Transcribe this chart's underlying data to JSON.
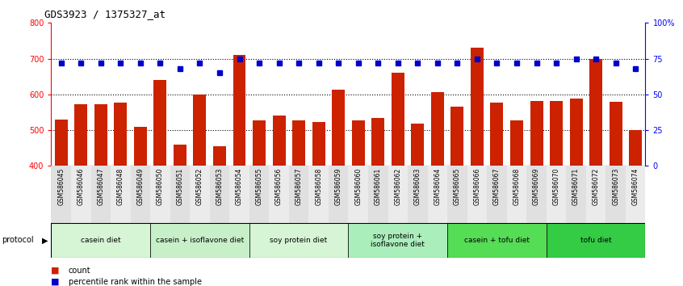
{
  "title": "GDS3923 / 1375327_at",
  "samples": [
    "GSM586045",
    "GSM586046",
    "GSM586047",
    "GSM586048",
    "GSM586049",
    "GSM586050",
    "GSM586051",
    "GSM586052",
    "GSM586053",
    "GSM586054",
    "GSM586055",
    "GSM586056",
    "GSM586057",
    "GSM586058",
    "GSM586059",
    "GSM586060",
    "GSM586061",
    "GSM586062",
    "GSM586063",
    "GSM586064",
    "GSM586065",
    "GSM586066",
    "GSM586067",
    "GSM586068",
    "GSM586069",
    "GSM586070",
    "GSM586071",
    "GSM586072",
    "GSM586073",
    "GSM586074"
  ],
  "counts": [
    530,
    572,
    572,
    578,
    510,
    640,
    460,
    600,
    455,
    710,
    528,
    540,
    527,
    523,
    613,
    527,
    535,
    660,
    518,
    607,
    565,
    730,
    577,
    527,
    582,
    582,
    588,
    700,
    580,
    500
  ],
  "percentile_ranks": [
    72,
    72,
    72,
    72,
    72,
    72,
    68,
    72,
    65,
    75,
    72,
    72,
    72,
    72,
    72,
    72,
    72,
    72,
    72,
    72,
    72,
    75,
    72,
    72,
    72,
    72,
    75,
    75,
    72,
    68
  ],
  "proto_data": [
    {
      "label": "casein diet",
      "start": 0,
      "end": 5,
      "color": "#d5f5d5"
    },
    {
      "label": "casein + isoflavone diet",
      "start": 5,
      "end": 10,
      "color": "#c8f0c8"
    },
    {
      "label": "soy protein diet",
      "start": 10,
      "end": 15,
      "color": "#d5f5d5"
    },
    {
      "label": "soy protein +\nisoflavone diet",
      "start": 15,
      "end": 20,
      "color": "#aaeebb"
    },
    {
      "label": "casein + tofu diet",
      "start": 20,
      "end": 25,
      "color": "#55dd55"
    },
    {
      "label": "tofu diet",
      "start": 25,
      "end": 30,
      "color": "#33cc44"
    }
  ],
  "ylim_left": [
    400,
    800
  ],
  "ylim_right": [
    0,
    100
  ],
  "yticks_left": [
    400,
    500,
    600,
    700,
    800
  ],
  "yticks_right": [
    0,
    25,
    50,
    75,
    100
  ],
  "bar_color": "#cc2200",
  "dot_color": "#0000cc",
  "label_count": "count",
  "label_pct": "percentile rank within the sample"
}
